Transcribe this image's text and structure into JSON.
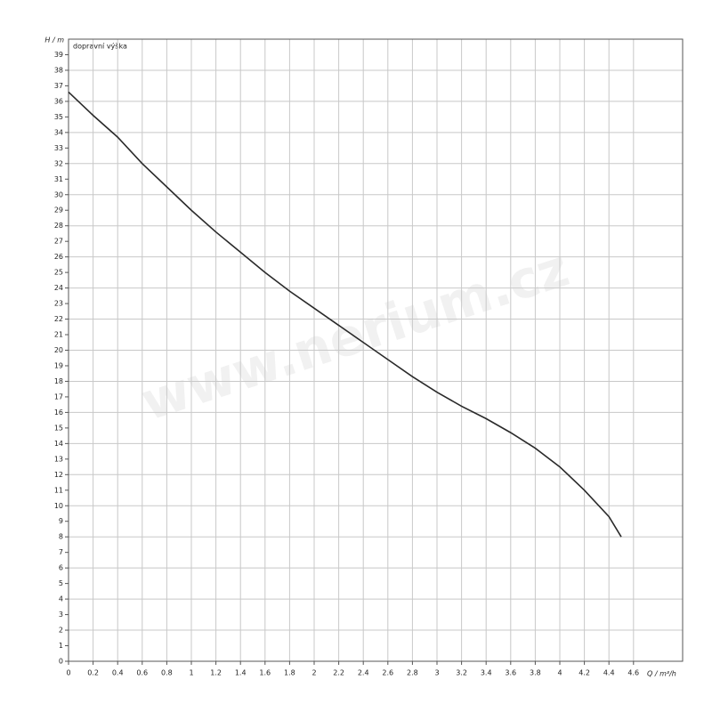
{
  "chart_data": {
    "type": "line",
    "annotation": "dopravní výška",
    "watermark": "www.nerium.cz",
    "x_label": "Q / m³/h",
    "y_label": "H / m",
    "xlim": [
      0,
      5
    ],
    "ylim": [
      0,
      40
    ],
    "xticks": [
      0,
      0.2,
      0.4,
      0.6,
      0.8,
      1,
      1.2,
      1.4,
      1.6,
      1.8,
      2,
      2.2,
      2.4,
      2.6,
      2.8,
      3,
      3.2,
      3.4,
      3.6,
      3.8,
      4,
      4.2,
      4.4,
      4.6
    ],
    "yticks": [
      0,
      1,
      2,
      3,
      4,
      5,
      6,
      7,
      8,
      9,
      10,
      11,
      12,
      13,
      14,
      15,
      16,
      17,
      18,
      19,
      20,
      21,
      22,
      23,
      24,
      25,
      26,
      27,
      28,
      29,
      30,
      31,
      32,
      33,
      34,
      35,
      36,
      37,
      38,
      39
    ],
    "grid": true,
    "x": [
      0,
      0.2,
      0.4,
      0.6,
      0.8,
      1.0,
      1.2,
      1.4,
      1.6,
      1.8,
      2.0,
      2.2,
      2.4,
      2.6,
      2.8,
      3.0,
      3.2,
      3.4,
      3.6,
      3.8,
      4.0,
      4.2,
      4.4,
      4.5
    ],
    "series": [
      {
        "color": "#2a2a2a",
        "values": [
          36.6,
          35.1,
          33.7,
          32.0,
          30.5,
          29.0,
          27.6,
          26.3,
          25.0,
          23.8,
          22.7,
          21.6,
          20.5,
          19.4,
          18.3,
          17.3,
          16.4,
          15.6,
          14.7,
          13.7,
          12.5,
          11.0,
          9.3,
          8.0
        ]
      }
    ]
  }
}
